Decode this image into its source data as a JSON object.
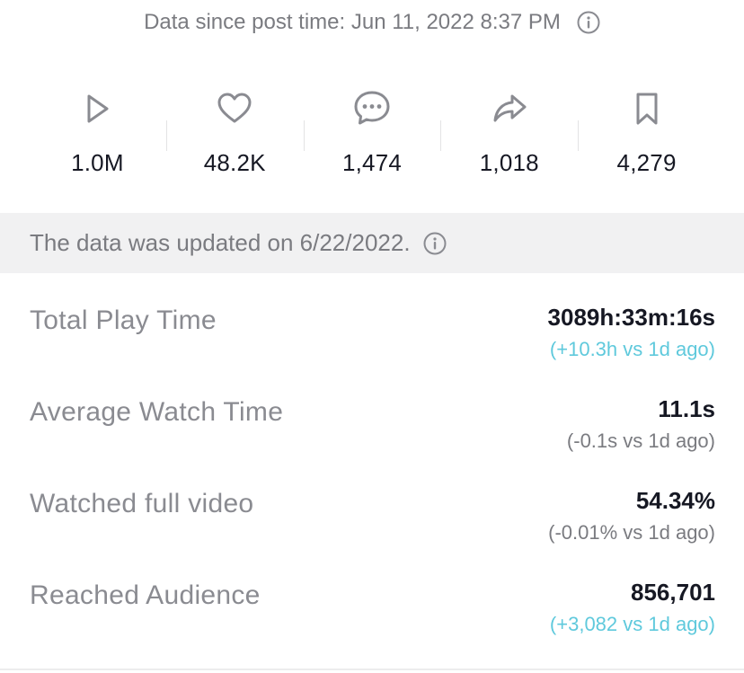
{
  "header": {
    "since_text": "Data since post time: Jun 11, 2022 8:37 PM",
    "info_icon": "info-circle-icon"
  },
  "stats": [
    {
      "icon": "play-icon",
      "value": "1.0M"
    },
    {
      "icon": "heart-icon",
      "value": "48.2K"
    },
    {
      "icon": "comment-icon",
      "value": "1,474"
    },
    {
      "icon": "share-icon",
      "value": "1,018"
    },
    {
      "icon": "bookmark-icon",
      "value": "4,279"
    }
  ],
  "updated_bar": {
    "text": "The data was updated on 6/22/2022.",
    "info_icon": "info-circle-icon"
  },
  "metrics": [
    {
      "label": "Total Play Time",
      "value": "3089h:33m:16s",
      "delta": "(+10.3h vs 1d ago)",
      "delta_trend": "positive"
    },
    {
      "label": "Average Watch Time",
      "value": "11.1s",
      "delta": "(-0.1s vs 1d ago)",
      "delta_trend": "negative"
    },
    {
      "label": "Watched full video",
      "value": "54.34%",
      "delta": "(-0.01% vs 1d ago)",
      "delta_trend": "negative"
    },
    {
      "label": "Reached Audience",
      "value": "856,701",
      "delta": "(+3,082 vs 1d ago)",
      "delta_trend": "positive"
    }
  ],
  "colors": {
    "positive_delta": "#5fc9dc",
    "muted_text": "#7a7b80",
    "primary_text": "#161823",
    "bar_background": "#f1f1f2"
  }
}
